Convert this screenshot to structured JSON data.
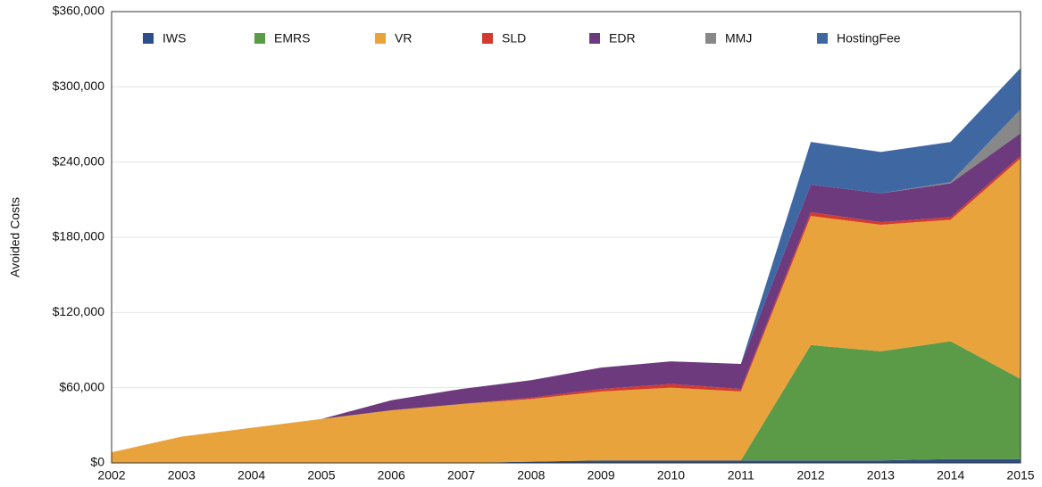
{
  "chart_data": {
    "type": "stacked_area",
    "y_label": "Avoided Costs",
    "categories": [
      "2002",
      "2003",
      "2004",
      "2005",
      "2006",
      "2007",
      "2008",
      "2009",
      "2010",
      "2011",
      "2012",
      "2013",
      "2014",
      "2015"
    ],
    "series": [
      {
        "name": "IWS",
        "color": "#2c4f8a",
        "values": [
          0,
          0,
          0,
          0,
          0,
          0,
          1000,
          2000,
          2000,
          2000,
          2000,
          2000,
          3000,
          3000
        ]
      },
      {
        "name": "EMRS",
        "color": "#5b9a47",
        "values": [
          0,
          0,
          0,
          0,
          0,
          0,
          0,
          0,
          0,
          0,
          92000,
          87000,
          94000,
          64000
        ]
      },
      {
        "name": "VR",
        "color": "#e8a33c",
        "values": [
          8500,
          21000,
          28000,
          35000,
          42000,
          47000,
          50000,
          55000,
          58000,
          55000,
          103000,
          101000,
          97000,
          176000
        ]
      },
      {
        "name": "SLD",
        "color": "#d43a2e",
        "values": [
          0,
          0,
          0,
          0,
          0,
          0,
          1000,
          2000,
          3000,
          2000,
          3000,
          2000,
          2000,
          2000
        ]
      },
      {
        "name": "EDR",
        "color": "#6e3a7e",
        "values": [
          0,
          0,
          0,
          0,
          8000,
          12000,
          14000,
          17000,
          18000,
          20000,
          22000,
          23000,
          27000,
          18000
        ]
      },
      {
        "name": "MMJ",
        "color": "#888888",
        "values": [
          0,
          0,
          0,
          0,
          0,
          0,
          0,
          0,
          0,
          0,
          0,
          0,
          1000,
          19000
        ]
      },
      {
        "name": "HostingFee",
        "color": "#3f68a3",
        "values": [
          0,
          0,
          0,
          0,
          0,
          0,
          0,
          0,
          0,
          0,
          34000,
          33000,
          32000,
          33000
        ]
      }
    ],
    "ylim": [
      0,
      360000
    ],
    "yticks": [
      {
        "value": 0,
        "label": "$0"
      },
      {
        "value": 60000,
        "label": "$60,000"
      },
      {
        "value": 120000,
        "label": "$120,000"
      },
      {
        "value": 180000,
        "label": "$180,000"
      },
      {
        "value": 240000,
        "label": "$240,000"
      },
      {
        "value": 300000,
        "label": "$300,000"
      },
      {
        "value": 360000,
        "label": "$360,000"
      }
    ],
    "grid": true,
    "legend": "top"
  }
}
